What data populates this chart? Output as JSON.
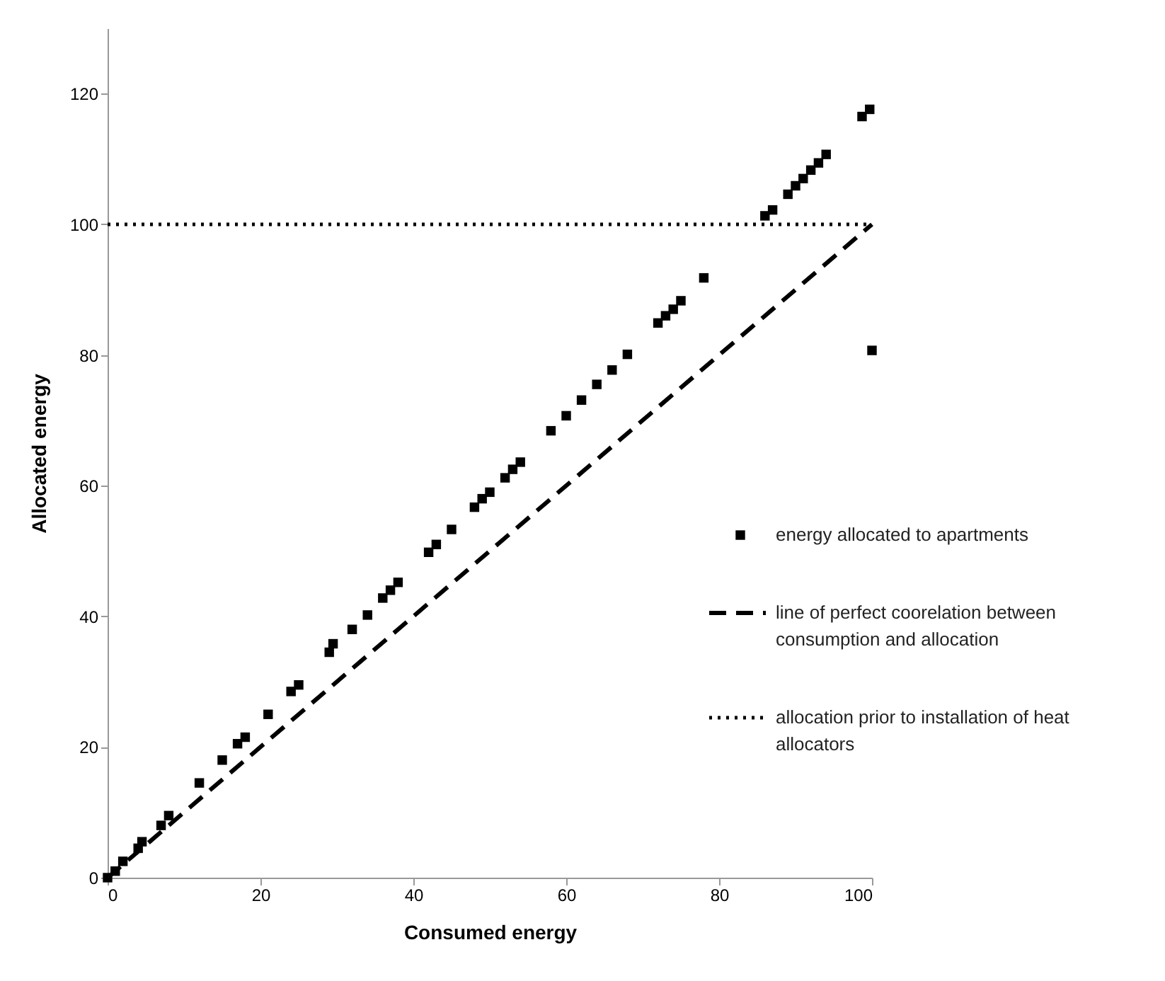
{
  "chart_data": {
    "type": "scatter",
    "xlabel": "Consumed energy",
    "ylabel": "Allocated energy",
    "xlim": [
      0,
      100
    ],
    "ylim": [
      0,
      130
    ],
    "xticks": [
      0,
      20,
      40,
      60,
      80,
      100
    ],
    "yticks": [
      0,
      20,
      40,
      60,
      80,
      100,
      120
    ],
    "grid": false,
    "legend": "right",
    "series": [
      {
        "name": "energy allocated to apartments",
        "marker": "square",
        "color": "#000000",
        "x": [
          0,
          1,
          2,
          4,
          4.5,
          7,
          8,
          12,
          15,
          17,
          18,
          21,
          24,
          25,
          29,
          29.5,
          32,
          34,
          36,
          37,
          38,
          42,
          43,
          45,
          48,
          49,
          50,
          52,
          53,
          54,
          58,
          60,
          62,
          64,
          66,
          68,
          72,
          73,
          74,
          75,
          78,
          86,
          87,
          89,
          90,
          91,
          92,
          93,
          94,
          98.7,
          99.7,
          100
        ],
        "values": [
          0,
          1,
          2.5,
          4.5,
          5.5,
          8,
          9.5,
          14.5,
          18,
          20.5,
          21.5,
          25,
          28.5,
          29.5,
          34.5,
          35.8,
          38,
          40.2,
          42.8,
          44,
          45.2,
          49.8,
          51,
          53.3,
          56.7,
          58,
          59,
          61.2,
          62.5,
          63.6,
          68.4,
          70.7,
          73.1,
          75.5,
          77.7,
          80.1,
          84.9,
          86,
          87,
          88.3,
          91.8,
          101.3,
          102.2,
          104.6,
          105.9,
          107,
          108.3,
          109.4,
          110.7,
          116.5,
          117.6,
          80.7
        ]
      },
      {
        "name": "line of perfect coorelation between consumption and allocation",
        "type": "line",
        "line_style": "dashed",
        "color": "#000000",
        "x": [
          0,
          100
        ],
        "values": [
          0,
          100
        ]
      },
      {
        "name": "allocation prior to installation of heat allocators",
        "type": "line",
        "line_style": "dotted",
        "color": "#000000",
        "x": [
          0,
          100
        ],
        "values": [
          100,
          100
        ]
      }
    ]
  }
}
